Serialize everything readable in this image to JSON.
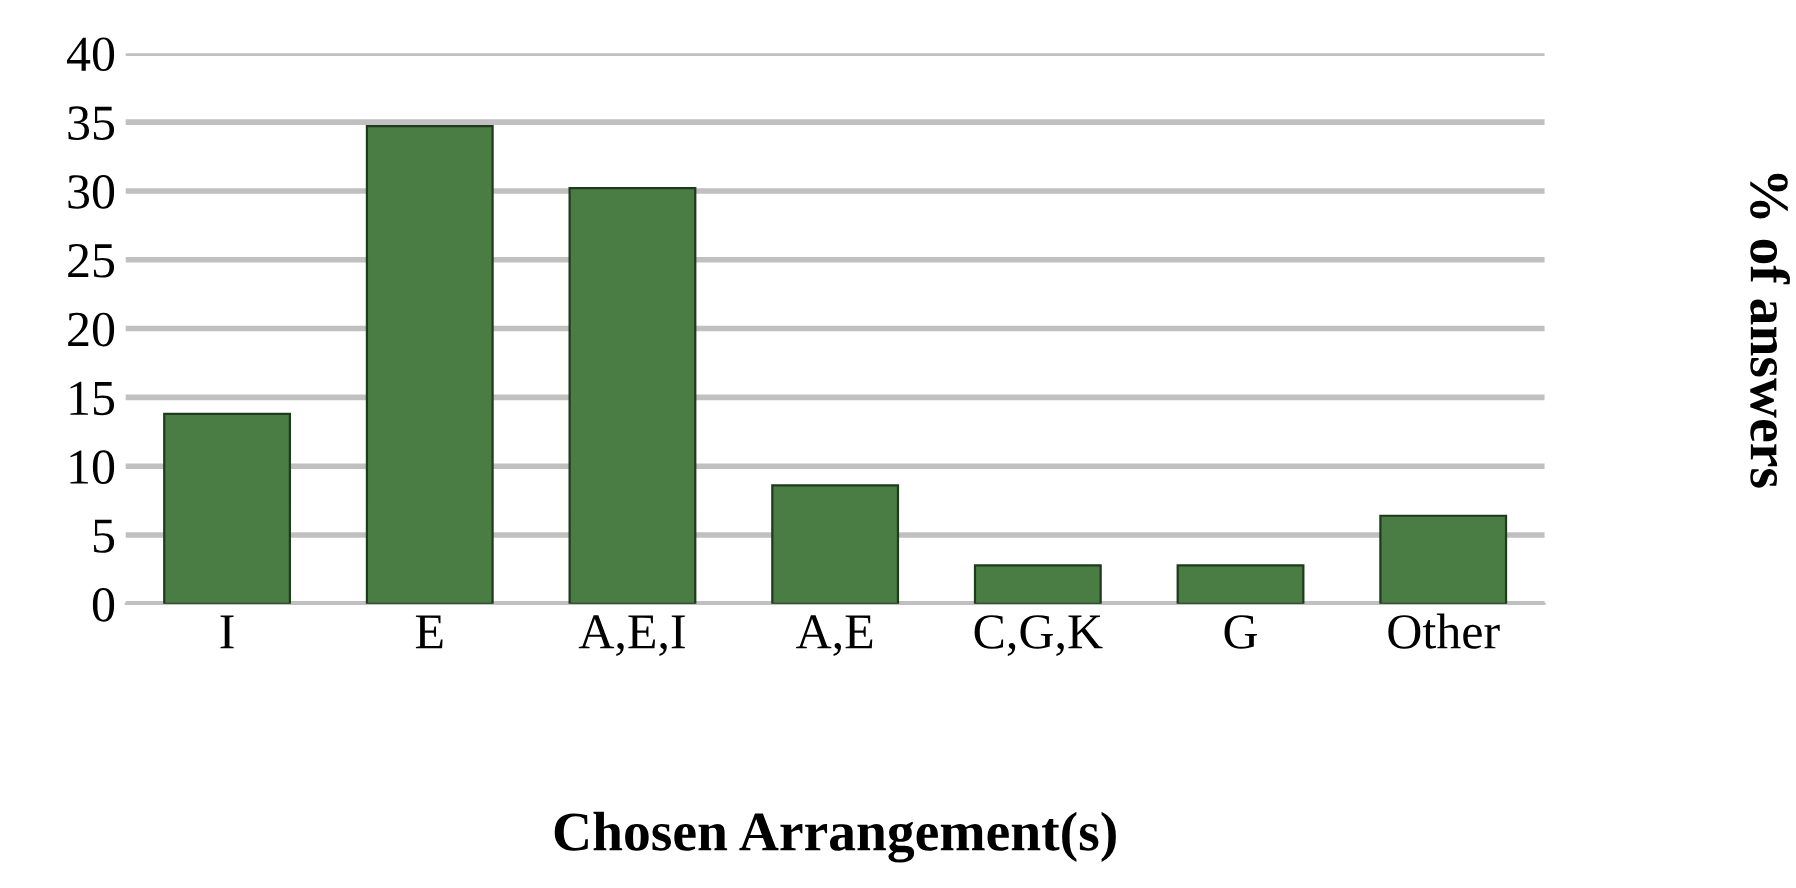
{
  "chart_data": {
    "type": "bar",
    "xlabel": "Chosen Arrangement(s)",
    "ylabel": "% of answers",
    "categories": [
      "I",
      "E",
      "A,E,I",
      "A,E",
      "C,G,K",
      "G",
      "Other"
    ],
    "values": [
      13.8,
      34.7,
      30.2,
      8.6,
      2.8,
      2.8,
      6.4
    ],
    "color": "#4a7d44",
    "ylim": [
      0,
      40
    ],
    "yticks": [
      0,
      5,
      10,
      15,
      20,
      25,
      30,
      35,
      40
    ],
    "grid": "y"
  }
}
